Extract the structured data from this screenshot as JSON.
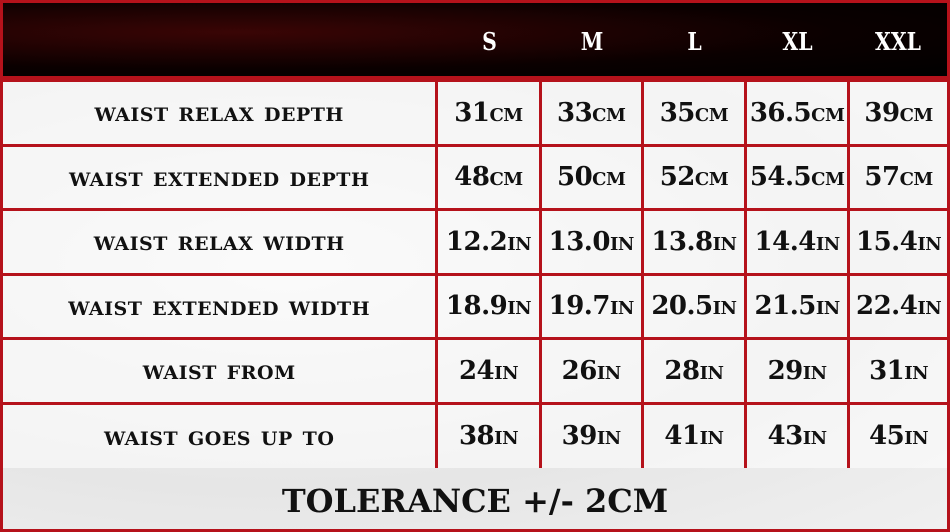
{
  "sizes": [
    "S",
    "M",
    "L",
    "XL",
    "XXL"
  ],
  "rows": [
    {
      "label": "WAIST RELAX DEPTH",
      "values": [
        [
          "31",
          "cm"
        ],
        [
          "33",
          "cm"
        ],
        [
          "35",
          "cm"
        ],
        [
          "36.5",
          "cm"
        ],
        [
          "39",
          "cm"
        ]
      ]
    },
    {
      "label": "WAIST EXTENDED DEPTH",
      "values": [
        [
          "48",
          "cm"
        ],
        [
          "50",
          "cm"
        ],
        [
          "52",
          "cm"
        ],
        [
          "54.5",
          "cm"
        ],
        [
          "57",
          "cm"
        ]
      ]
    },
    {
      "label": "WAIST RELAX WIDTH",
      "values": [
        [
          "12.2",
          "in"
        ],
        [
          "13.0",
          "in"
        ],
        [
          "13.8",
          "in"
        ],
        [
          "14.4",
          "in"
        ],
        [
          "15.4",
          "in"
        ]
      ]
    },
    {
      "label": "WAIST EXTENDED WIDTH",
      "values": [
        [
          "18.9",
          "in"
        ],
        [
          "19.7",
          "in"
        ],
        [
          "20.5",
          "in"
        ],
        [
          "21.5",
          "in"
        ],
        [
          "22.4",
          "in"
        ]
      ]
    },
    {
      "label": "WAIST FROM",
      "values": [
        [
          "24",
          "in"
        ],
        [
          "26",
          "in"
        ],
        [
          "28",
          "in"
        ],
        [
          "29",
          "in"
        ],
        [
          "31",
          "in"
        ]
      ]
    },
    {
      "label": "WAIST GOES UP TO",
      "values": [
        [
          "38",
          "in"
        ],
        [
          "39",
          "in"
        ],
        [
          "41",
          "in"
        ],
        [
          "43",
          "in"
        ],
        [
          "45",
          "in"
        ]
      ]
    }
  ],
  "tolerance": "TOLERANCE +/- 2CM",
  "colors": {
    "border": "#b5121b",
    "header_bg": "#000000"
  }
}
